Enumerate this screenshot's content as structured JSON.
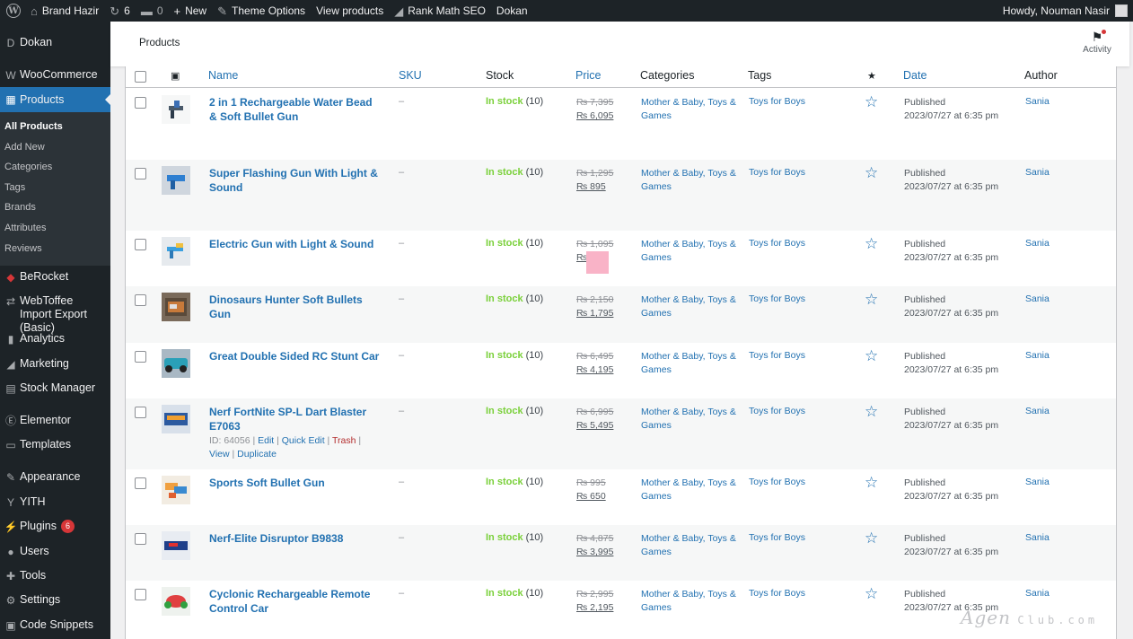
{
  "adminbar": {
    "site_name": "Brand Hazir",
    "updates_count": "6",
    "comments_count": "0",
    "new_label": "New",
    "theme_options": "Theme Options",
    "view_products": "View products",
    "rank_math": "Rank Math SEO",
    "dokan": "Dokan",
    "howdy": "Howdy, Nouman Nasir"
  },
  "sidebar": {
    "items": [
      {
        "label": "Dokan",
        "icon": "dokan-icon",
        "glyph": "D"
      },
      {
        "label": "WooCommerce",
        "icon": "woocommerce-icon",
        "glyph": "W"
      },
      {
        "label": "Products",
        "icon": "products-icon",
        "glyph": "▦"
      },
      {
        "label": "BeRocket",
        "icon": "berocket-icon",
        "glyph": "◆"
      },
      {
        "label": "WebToffee Import Export (Basic)",
        "icon": "import-export-icon",
        "glyph": "⇄"
      },
      {
        "label": "Analytics",
        "icon": "analytics-icon",
        "glyph": "▮"
      },
      {
        "label": "Marketing",
        "icon": "marketing-icon",
        "glyph": "◢"
      },
      {
        "label": "Stock Manager",
        "icon": "stock-manager-icon",
        "glyph": "▤"
      },
      {
        "label": "Elementor",
        "icon": "elementor-icon",
        "glyph": "Ⓔ"
      },
      {
        "label": "Templates",
        "icon": "templates-icon",
        "glyph": "▭"
      },
      {
        "label": "Appearance",
        "icon": "appearance-icon",
        "glyph": "✎"
      },
      {
        "label": "YITH",
        "icon": "yith-icon",
        "glyph": "Y"
      },
      {
        "label": "Plugins",
        "icon": "plugins-icon",
        "glyph": "⚡"
      },
      {
        "label": "Users",
        "icon": "users-icon",
        "glyph": "●"
      },
      {
        "label": "Tools",
        "icon": "tools-icon",
        "glyph": "✚"
      },
      {
        "label": "Settings",
        "icon": "settings-icon",
        "glyph": "⚙"
      },
      {
        "label": "Code Snippets",
        "icon": "code-snippets-icon",
        "glyph": "▣"
      }
    ],
    "plugins_badge": "6",
    "submenu": [
      "All Products",
      "Add New",
      "Categories",
      "Tags",
      "Brands",
      "Attributes",
      "Reviews"
    ]
  },
  "header": {
    "title": "Products",
    "activity": "Activity"
  },
  "columns": {
    "name": "Name",
    "sku": "SKU",
    "stock": "Stock",
    "price": "Price",
    "categories": "Categories",
    "tags": "Tags",
    "date": "Date",
    "author": "Author"
  },
  "rows": [
    {
      "name": "2 in 1 Rechargeable Water Bead & Soft Bullet Gun",
      "sku": "–",
      "stock_status": "In stock",
      "stock_qty": "(10)",
      "regular_price": "₨ 7,395",
      "sale_price": "₨ 6,095",
      "categories": "Mother & Baby, Toys & Games",
      "tags": "Toys for Boys",
      "date_status": "Published",
      "date": "2023/07/27 at 6:35 pm",
      "author": "Sania"
    },
    {
      "name": "Super Flashing Gun With Light & Sound",
      "sku": "–",
      "stock_status": "In stock",
      "stock_qty": "(10)",
      "regular_price": "₨ 1,295",
      "sale_price": "₨ 895",
      "categories": "Mother & Baby, Toys & Games",
      "tags": "Toys for Boys",
      "date_status": "Published",
      "date": "2023/07/27 at 6:35 pm",
      "author": "Sania"
    },
    {
      "name": "Electric Gun with Light & Sound",
      "sku": "–",
      "stock_status": "In stock",
      "stock_qty": "(10)",
      "regular_price": "₨ 1,095",
      "sale_price": "₨ 8",
      "categories": "Mother & Baby, Toys & Games",
      "tags": "Toys for Boys",
      "date_status": "Published",
      "date": "2023/07/27 at 6:35 pm",
      "author": "Sania"
    },
    {
      "name": "Dinosaurs Hunter Soft Bullets Gun",
      "sku": "–",
      "stock_status": "In stock",
      "stock_qty": "(10)",
      "regular_price": "₨ 2,150",
      "sale_price": "₨ 1,795",
      "categories": "Mother & Baby, Toys & Games",
      "tags": "Toys for Boys",
      "date_status": "Published",
      "date": "2023/07/27 at 6:35 pm",
      "author": "Sania"
    },
    {
      "name": "Great Double Sided RC Stunt Car",
      "sku": "–",
      "stock_status": "In stock",
      "stock_qty": "(10)",
      "regular_price": "₨ 6,495",
      "sale_price": "₨ 4,195",
      "categories": "Mother & Baby, Toys & Games",
      "tags": "Toys for Boys",
      "date_status": "Published",
      "date": "2023/07/27 at 6:35 pm",
      "author": "Sania"
    },
    {
      "name": "Nerf FortNite SP-L Dart Blaster E7063",
      "sku": "–",
      "stock_status": "In stock",
      "stock_qty": "(10)",
      "regular_price": "₨ 6,995",
      "sale_price": "₨ 5,495",
      "categories": "Mother & Baby, Toys & Games",
      "tags": "Toys for Boys",
      "date_status": "Published",
      "date": "2023/07/27 at 6:35 pm",
      "author": "Sania",
      "actions": {
        "id": "ID: 64056",
        "edit": "Edit",
        "quick_edit": "Quick Edit",
        "trash": "Trash",
        "view": "View",
        "duplicate": "Duplicate"
      }
    },
    {
      "name": "Sports Soft Bullet Gun",
      "sku": "–",
      "stock_status": "In stock",
      "stock_qty": "(10)",
      "regular_price": "₨ 995",
      "sale_price": "₨ 650",
      "categories": "Mother & Baby, Toys & Games",
      "tags": "Toys for Boys",
      "date_status": "Published",
      "date": "2023/07/27 at 6:35 pm",
      "author": "Sania"
    },
    {
      "name": "Nerf-Elite Disruptor B9838",
      "sku": "–",
      "stock_status": "In stock",
      "stock_qty": "(10)",
      "regular_price": "₨ 4,875",
      "sale_price": "₨ 3,995",
      "categories": "Mother & Baby, Toys & Games",
      "tags": "Toys for Boys",
      "date_status": "Published",
      "date": "2023/07/27 at 6:35 pm",
      "author": "Sania"
    },
    {
      "name": "Cyclonic Rechargeable Remote Control Car",
      "sku": "–",
      "stock_status": "In stock",
      "stock_qty": "(10)",
      "regular_price": "₨ 2,995",
      "sale_price": "₨ 2,195",
      "categories": "Mother & Baby, Toys & Games",
      "tags": "Toys for Boys",
      "date_status": "Published",
      "date": "2023/07/27 at 6:35 pm",
      "author": "Sania"
    }
  ],
  "watermark": {
    "text": "Agen",
    "suffix": "Club.com"
  }
}
